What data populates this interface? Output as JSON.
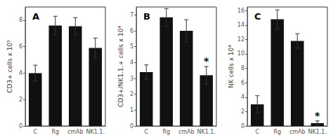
{
  "chart_data": [
    {
      "type": "bar",
      "title": "A",
      "ylabel": "CD3+ cells x 10⁵",
      "categories": [
        "C",
        "Rg",
        "cmAb",
        "NK1.1."
      ],
      "values": [
        4.0,
        7.6,
        7.55,
        5.9
      ],
      "errors": [
        0.6,
        0.7,
        0.65,
        0.75
      ],
      "color": "#111111",
      "ylim": [
        0,
        9
      ],
      "yticks": [
        0,
        2,
        4,
        6,
        8
      ],
      "grid": false
    },
    {
      "type": "bar",
      "title": "B",
      "ylabel": "CD3+/NK1.1.+ cells x 10⁴",
      "categories": [
        "C",
        "Rg",
        "cmAb",
        "NK1.1."
      ],
      "values": [
        3.4,
        6.85,
        6.0,
        3.2
      ],
      "errors": [
        0.45,
        0.55,
        0.7,
        0.55
      ],
      "color": "#111111",
      "ylim": [
        0,
        7.5
      ],
      "yticks": [
        0,
        1,
        2,
        3,
        4,
        5,
        6,
        7
      ],
      "grid": false,
      "annotations": [
        {
          "text": "*",
          "category": "NK1.1."
        }
      ]
    },
    {
      "type": "bar",
      "title": "C",
      "ylabel": "NK cells x 10⁴",
      "categories": [
        "C",
        "Rg",
        "cmAb",
        "NK1.1."
      ],
      "values": [
        3.0,
        14.8,
        11.8,
        0.4
      ],
      "errors": [
        1.2,
        1.3,
        1.0,
        0.3
      ],
      "color": "#111111",
      "ylim": [
        0,
        16.5
      ],
      "yticks": [
        0,
        2,
        4,
        6,
        8,
        10,
        12,
        14,
        16
      ],
      "grid": false,
      "annotations": [
        {
          "text": "*",
          "category": "NK1.1."
        }
      ]
    }
  ]
}
